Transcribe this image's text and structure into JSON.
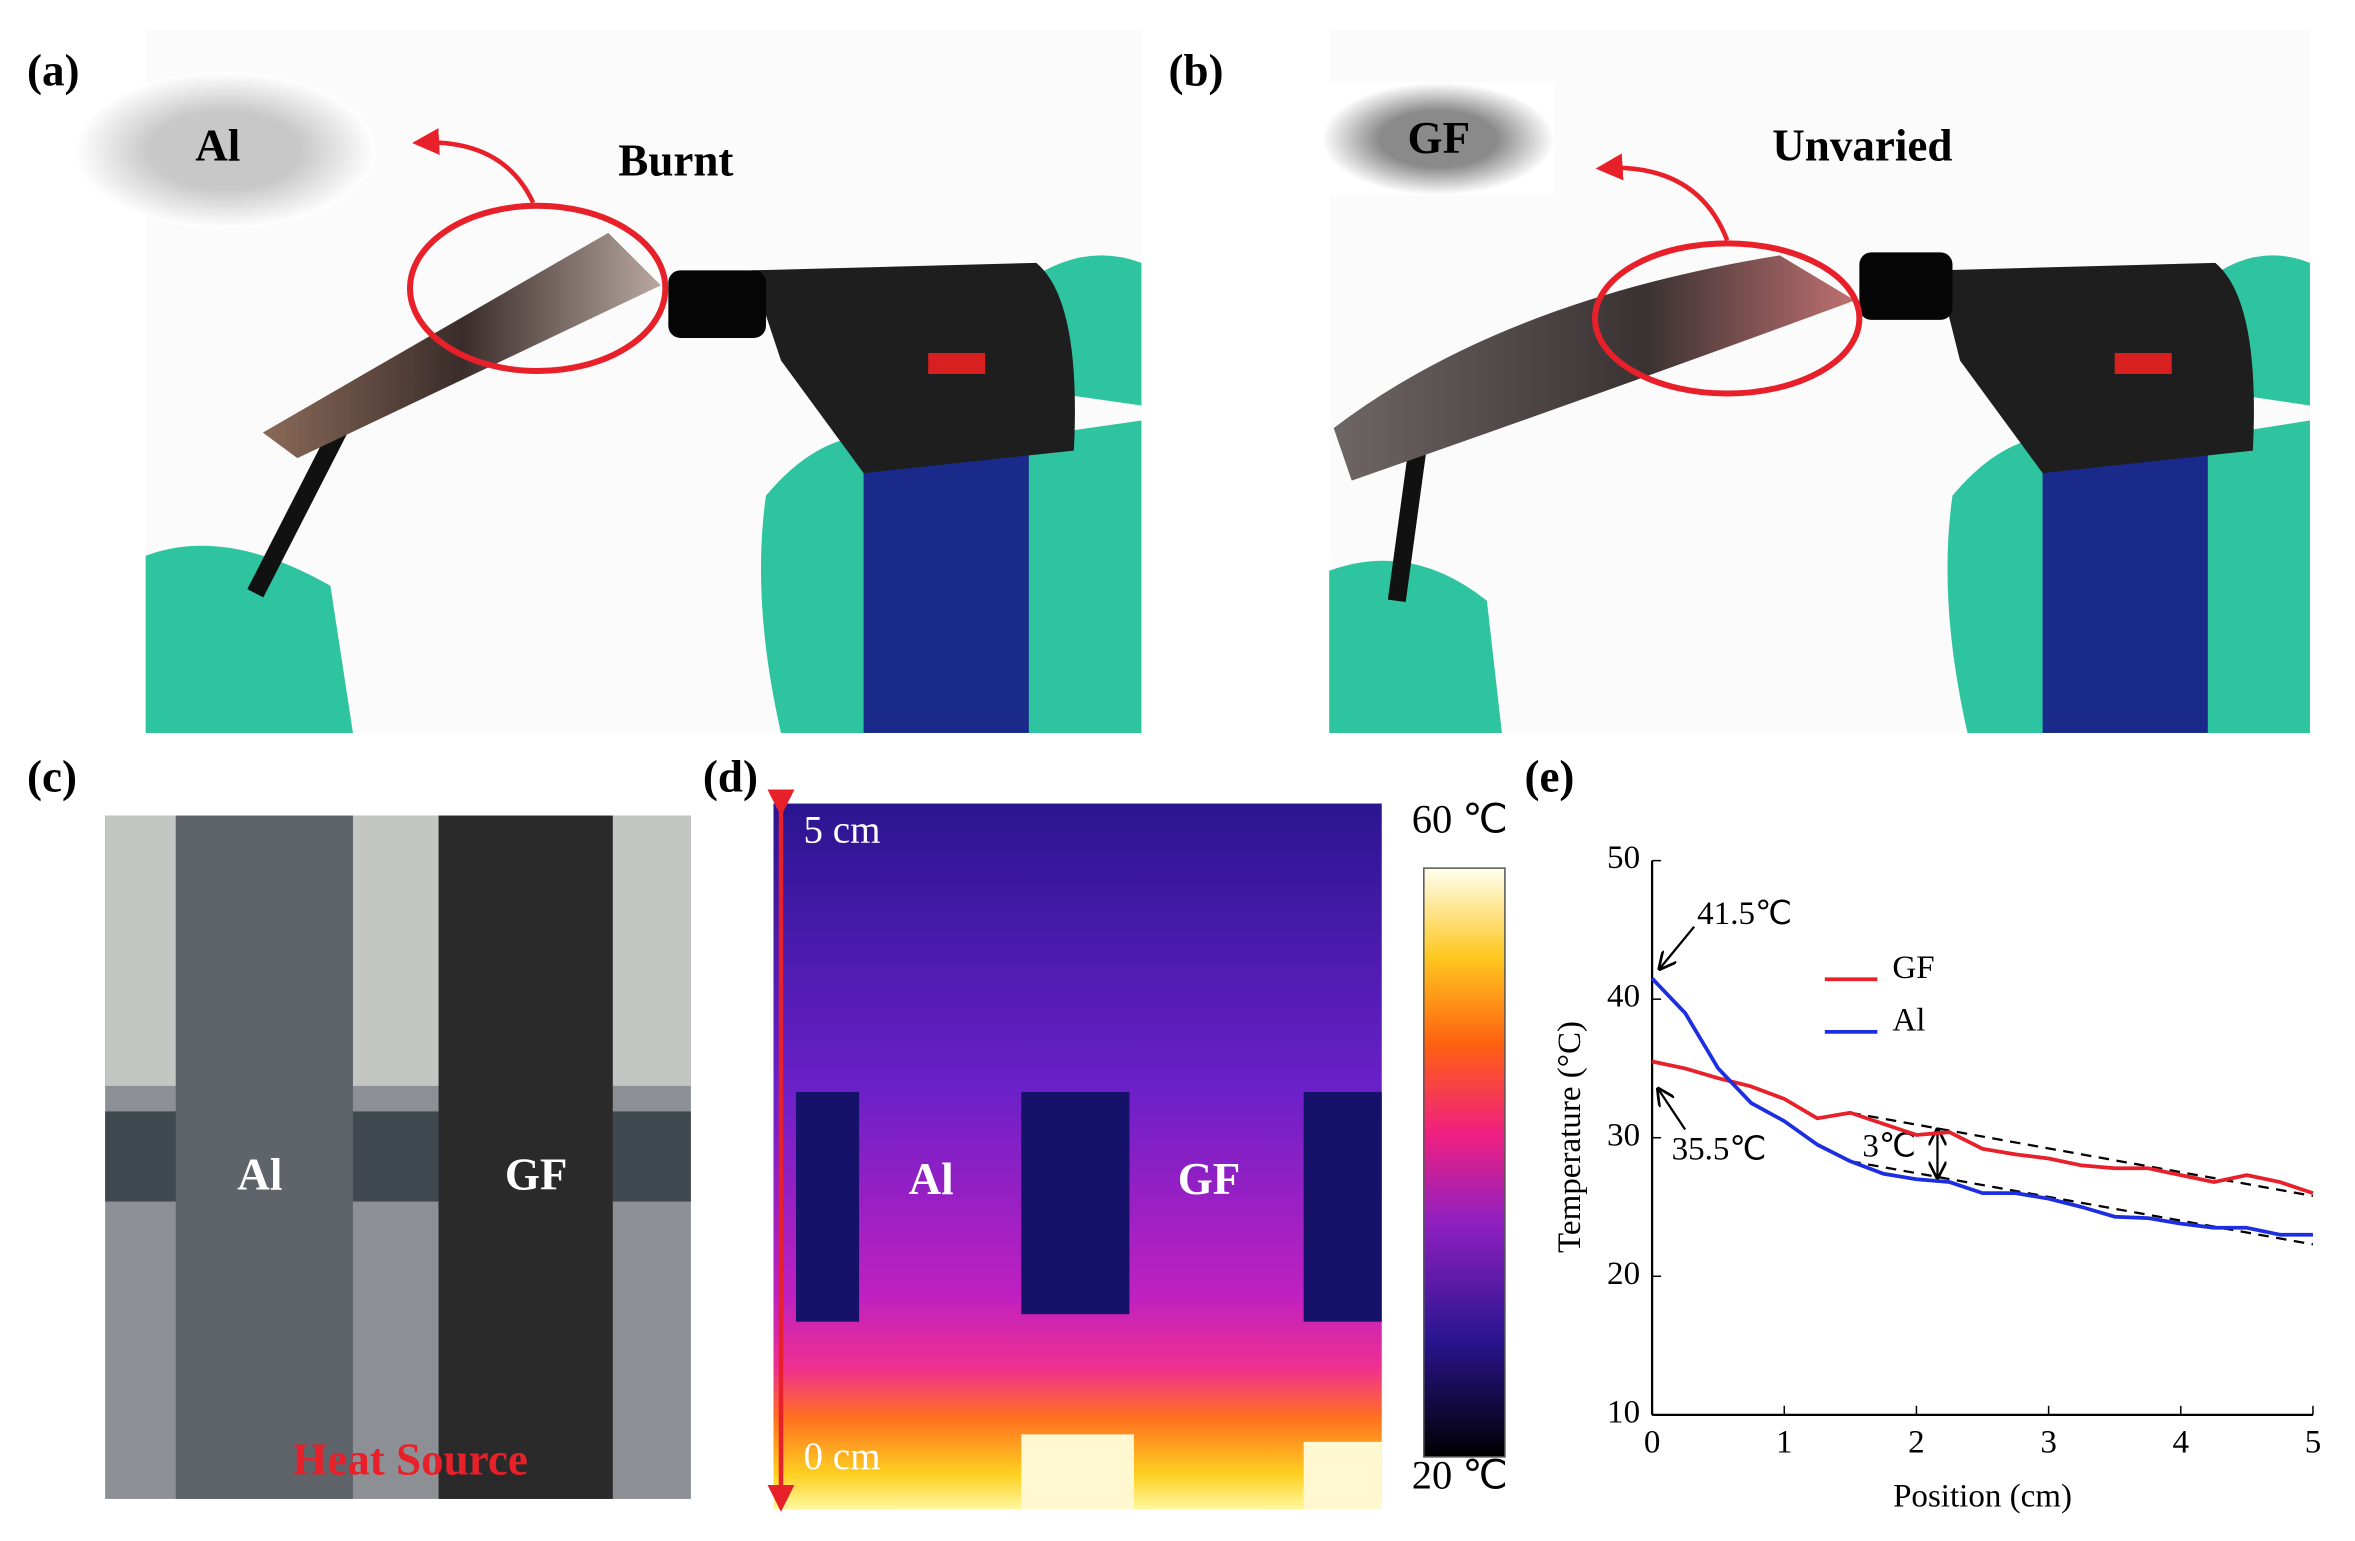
{
  "panel_a": {
    "label": "(a)",
    "inset_label": "Al",
    "caption": "Burnt"
  },
  "panel_b": {
    "label": "(b)",
    "inset_label": "GF",
    "caption": "Unvaried"
  },
  "panel_c": {
    "label": "(c)",
    "strips": [
      "Al",
      "GF"
    ],
    "note": "Heat Source"
  },
  "panel_d": {
    "label": "(d)",
    "top_mark": "5 cm",
    "bottom_mark": "0 cm",
    "regions": [
      "Al",
      "GF"
    ],
    "colorbar_max": "60 ℃",
    "colorbar_min": "20 ℃"
  },
  "chart_data": {
    "type": "line",
    "panel_label": "(e)",
    "x_label": "Position (cm)",
    "y_label": "Temperature (°C)",
    "x": [
      0,
      0.25,
      0.5,
      0.75,
      1,
      1.25,
      1.5,
      1.75,
      2,
      2.25,
      2.5,
      2.75,
      3,
      3.25,
      3.5,
      3.75,
      4,
      4.25,
      4.5,
      4.75,
      5
    ],
    "series": [
      {
        "name": "GF",
        "color": "#e8202a",
        "values": [
          35.5,
          35.0,
          34.3,
          33.7,
          32.8,
          31.4,
          31.8,
          31.0,
          30.2,
          30.4,
          29.2,
          28.8,
          28.5,
          28.0,
          27.8,
          27.8,
          27.3,
          26.8,
          27.3,
          26.8,
          26.0
        ]
      },
      {
        "name": "Al",
        "color": "#1d2ee0",
        "values": [
          41.5,
          39.0,
          35.0,
          32.5,
          31.2,
          29.5,
          28.3,
          27.4,
          27.0,
          26.8,
          26.0,
          26.0,
          25.6,
          25.0,
          24.3,
          24.2,
          23.8,
          23.5,
          23.5,
          23.0,
          23.0
        ]
      }
    ],
    "fit_lines": [
      {
        "x": [
          1.5,
          5
        ],
        "values": [
          31.8,
          25.8
        ]
      },
      {
        "x": [
          1.5,
          5
        ],
        "values": [
          28.3,
          22.3
        ]
      }
    ],
    "annotations": [
      "41.5℃",
      "35.5℃",
      "3℃"
    ],
    "xlim": [
      0,
      5
    ],
    "ylim": [
      10,
      50
    ],
    "xticks": [
      0,
      1,
      2,
      3,
      4,
      5
    ],
    "yticks": [
      10,
      20,
      30,
      40,
      50
    ]
  }
}
